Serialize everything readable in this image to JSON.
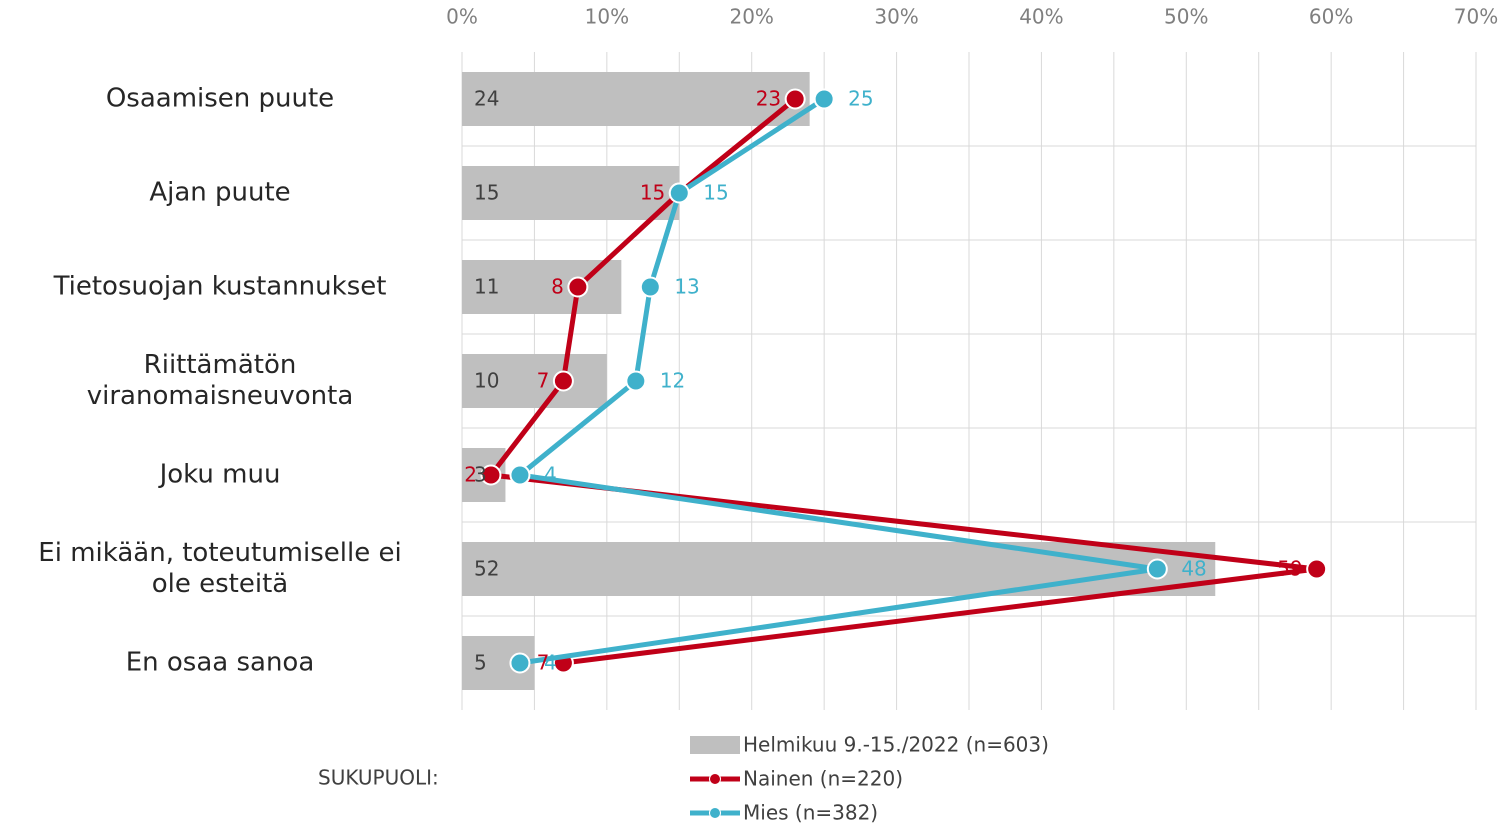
{
  "chart_data": {
    "type": "bar-line",
    "categories": [
      "Osaamisen puute",
      "Ajan puute",
      "Tietosuojan kustannukset",
      "Riittämätön\nviranomaisneuvonta",
      "Joku muu",
      "Ei mikään, toteutumiselle ei\nole esteitä",
      "En osaa sanoa"
    ],
    "series": [
      {
        "name": "Helmikuu 9.-15./2022 (n=603)",
        "kind": "bar",
        "color": "#bfbfbf",
        "values": [
          24,
          15,
          11,
          10,
          3,
          52,
          5
        ]
      },
      {
        "name": "Nainen (n=220)",
        "kind": "line",
        "color": "#c00018",
        "values": [
          23,
          15,
          8,
          7,
          2,
          59,
          7
        ]
      },
      {
        "name": "Mies (n=382)",
        "kind": "line",
        "color": "#3fb1cb",
        "values": [
          25,
          15,
          13,
          12,
          4,
          48,
          4
        ]
      }
    ],
    "legend_title": "SUKUPUOLI:",
    "xlim": [
      0,
      70
    ],
    "xticks": [
      {
        "value": 0,
        "label": "0%"
      },
      {
        "value": 10,
        "label": "10%"
      },
      {
        "value": 20,
        "label": "20%"
      },
      {
        "value": 30,
        "label": "30%"
      },
      {
        "value": 40,
        "label": "40%"
      },
      {
        "value": 50,
        "label": "50%"
      },
      {
        "value": 60,
        "label": "60%"
      },
      {
        "value": 70,
        "label": "70%"
      }
    ],
    "minor_xticks": [
      5,
      15,
      25,
      35,
      45,
      55,
      65
    ],
    "grid": true
  }
}
